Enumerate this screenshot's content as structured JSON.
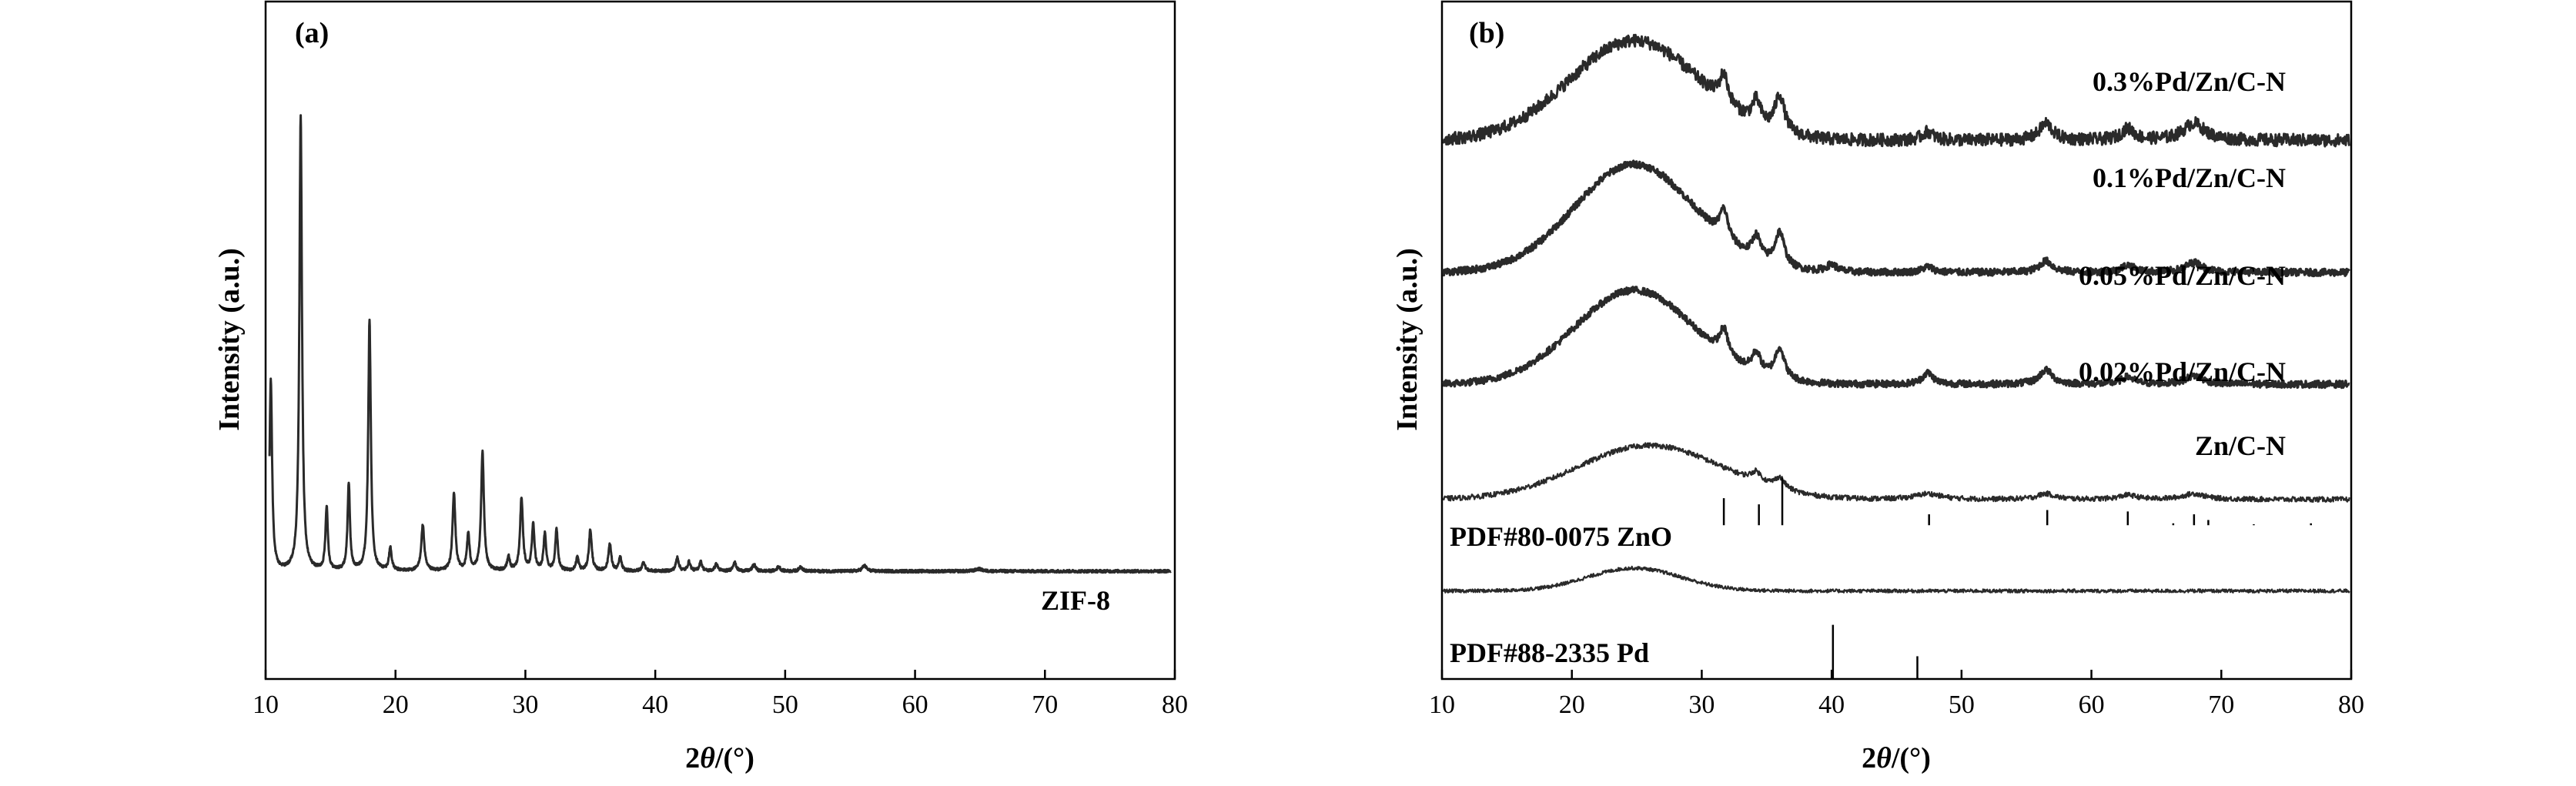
{
  "chart_data": [
    {
      "panel": "(a)",
      "type": "line",
      "xlabel": "2θ/(°)",
      "ylabel": "Intensity (a.u.)",
      "xlim": [
        10,
        80
      ],
      "xticks": [
        10,
        20,
        30,
        40,
        50,
        60,
        70,
        80
      ],
      "series": [
        {
          "name": "ZIF-8",
          "baseline": 0.08,
          "peaks": [
            [
              10.4,
              0.42,
              0.12
            ],
            [
              12.7,
              1.0,
              0.12
            ],
            [
              14.7,
              0.14,
              0.11
            ],
            [
              16.4,
              0.19,
              0.11
            ],
            [
              18.0,
              0.55,
              0.12
            ],
            [
              19.6,
              0.05,
              0.12
            ],
            [
              22.1,
              0.1,
              0.14
            ],
            [
              24.5,
              0.17,
              0.13
            ],
            [
              25.6,
              0.08,
              0.12
            ],
            [
              26.7,
              0.26,
              0.13
            ],
            [
              28.7,
              0.03,
              0.12
            ],
            [
              29.7,
              0.16,
              0.13
            ],
            [
              30.6,
              0.1,
              0.12
            ],
            [
              31.5,
              0.08,
              0.12
            ],
            [
              32.4,
              0.09,
              0.12
            ],
            [
              34.0,
              0.03,
              0.12
            ],
            [
              35.0,
              0.09,
              0.13
            ],
            [
              36.5,
              0.06,
              0.13
            ],
            [
              37.3,
              0.03,
              0.12
            ],
            [
              39.1,
              0.02,
              0.13
            ],
            [
              41.7,
              0.03,
              0.13
            ],
            [
              42.6,
              0.02,
              0.13
            ],
            [
              43.5,
              0.02,
              0.13
            ],
            [
              44.7,
              0.015,
              0.14
            ],
            [
              46.1,
              0.02,
              0.14
            ],
            [
              47.6,
              0.015,
              0.14
            ],
            [
              49.5,
              0.01,
              0.15
            ],
            [
              51.2,
              0.01,
              0.15
            ],
            [
              56.1,
              0.012,
              0.2
            ],
            [
              64.9,
              0.005,
              0.3
            ]
          ]
        }
      ]
    },
    {
      "panel": "(b)",
      "type": "line",
      "xlabel": "2θ/(°)",
      "ylabel": "Intensity (a.u.)",
      "xlim": [
        10,
        80
      ],
      "xticks": [
        10,
        20,
        30,
        40,
        50,
        60,
        70,
        80
      ],
      "series": [
        {
          "name": "0.3%Pd/Zn/C-N",
          "offset": 0.795,
          "hump": [
            24.8,
            0.35,
            5.0
          ],
          "peaks": [
            [
              31.7,
              0.1,
              0.4
            ],
            [
              34.2,
              0.08,
              0.4
            ],
            [
              36.0,
              0.13,
              0.45
            ],
            [
              47.4,
              0.03,
              0.5
            ],
            [
              56.5,
              0.06,
              0.6
            ],
            [
              62.8,
              0.04,
              0.6
            ],
            [
              67.9,
              0.06,
              1.0
            ]
          ],
          "noise": 0.022
        },
        {
          "name": "0.1%Pd/Zn/C-N",
          "offset": 0.6,
          "hump": [
            24.8,
            0.38,
            4.6
          ],
          "peaks": [
            [
              31.7,
              0.1,
              0.4
            ],
            [
              34.2,
              0.08,
              0.4
            ],
            [
              36.0,
              0.12,
              0.45
            ],
            [
              40.0,
              0.025,
              0.5
            ],
            [
              47.4,
              0.02,
              0.5
            ],
            [
              56.5,
              0.04,
              0.6
            ],
            [
              62.8,
              0.025,
              0.6
            ],
            [
              67.9,
              0.035,
              0.8
            ]
          ],
          "noise": 0.012
        },
        {
          "name": "0.05%Pd/Zn/C-N",
          "offset": 0.435,
          "hump": [
            24.8,
            0.33,
            4.6
          ],
          "peaks": [
            [
              31.7,
              0.09,
              0.4
            ],
            [
              34.2,
              0.07,
              0.4
            ],
            [
              36.0,
              0.11,
              0.45
            ],
            [
              47.4,
              0.04,
              0.5
            ],
            [
              56.5,
              0.05,
              0.6
            ],
            [
              62.8,
              0.025,
              0.6
            ],
            [
              67.9,
              0.03,
              0.8
            ]
          ],
          "noise": 0.012
        },
        {
          "name": "0.02%Pd/Zn/C-N",
          "offset": 0.265,
          "hump": [
            26.0,
            0.19,
            5.5
          ],
          "peaks": [
            [
              34.2,
              0.035,
              0.5
            ],
            [
              36.0,
              0.04,
              0.5
            ],
            [
              47.4,
              0.02,
              1.2
            ],
            [
              56.5,
              0.02,
              0.8
            ],
            [
              62.8,
              0.015,
              0.8
            ],
            [
              67.9,
              0.02,
              1.0
            ]
          ],
          "noise": 0.009
        },
        {
          "name": "Zn/C-N",
          "offset": 0.13,
          "hump": [
            24.8,
            0.08,
            3.6
          ],
          "peaks": [],
          "noise": 0.006
        }
      ],
      "references": [
        {
          "name": "PDF#80-0075 ZnO",
          "positions": [
            31.7,
            34.4,
            36.2,
            47.5,
            56.6,
            62.8,
            66.3,
            67.9,
            69.0,
            72.5,
            76.9
          ],
          "intensities": [
            0.57,
            0.44,
            1.0,
            0.23,
            0.32,
            0.29,
            0.04,
            0.23,
            0.11,
            0.02,
            0.04
          ]
        },
        {
          "name": "PDF#88-2335 Pd",
          "positions": [
            40.1,
            46.6
          ],
          "intensities": [
            1.0,
            0.42
          ]
        }
      ]
    }
  ]
}
